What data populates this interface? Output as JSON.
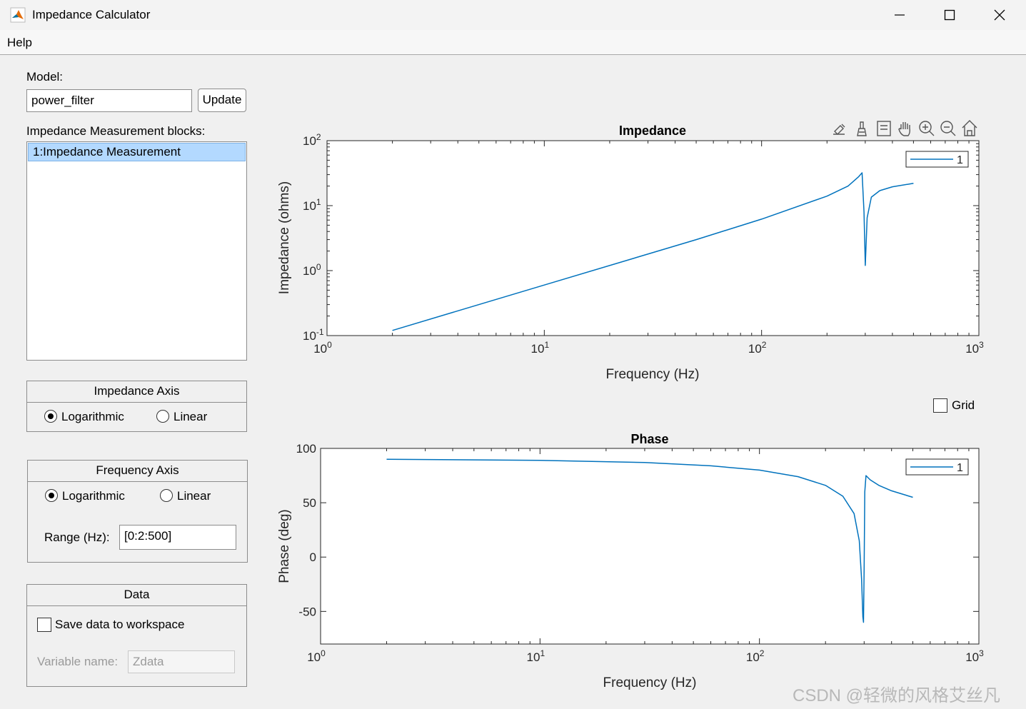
{
  "window": {
    "title": "Impedance Calculator"
  },
  "menu": {
    "help": "Help"
  },
  "model": {
    "label": "Model:",
    "value": "power_filter",
    "update_label": "Update"
  },
  "blocks": {
    "label": "Impedance Measurement blocks:",
    "items": [
      "1:Impedance  Measurement"
    ]
  },
  "impedance_axis": {
    "title": "Impedance Axis",
    "options": [
      "Logarithmic",
      "Linear"
    ],
    "selected": "Logarithmic"
  },
  "frequency_axis": {
    "title": "Frequency Axis",
    "options": [
      "Logarithmic",
      "Linear"
    ],
    "selected": "Logarithmic",
    "range_label": "Range (Hz):",
    "range_value": "[0:2:500]"
  },
  "data_panel": {
    "title": "Data",
    "save_label": "Save data to workspace",
    "save_checked": false,
    "varname_label": "Variable name:",
    "varname_value": "Zdata"
  },
  "grid": {
    "label": "Grid",
    "checked": false
  },
  "toolbar_icons": [
    "brush-export-icon",
    "data-brush-icon",
    "datatip-icon",
    "pan-icon",
    "zoom-in-icon",
    "zoom-out-icon",
    "home-icon"
  ],
  "watermark": "CSDN @轻微的风格艾丝凡",
  "chart_data": [
    {
      "type": "line",
      "title": "Impedance",
      "xlabel": "Frequency (Hz)",
      "ylabel": "Impedance (ohms)",
      "xscale": "log",
      "yscale": "log",
      "xlim": [
        1,
        1000
      ],
      "ylim": [
        0.1,
        100
      ],
      "xticks": [
        {
          "base": "10",
          "exp": "0"
        },
        {
          "base": "10",
          "exp": "1"
        },
        {
          "base": "10",
          "exp": "2"
        },
        {
          "base": "10",
          "exp": "3"
        }
      ],
      "yticks": [
        {
          "base": "10",
          "exp": "-1"
        },
        {
          "base": "10",
          "exp": "0"
        },
        {
          "base": "10",
          "exp": "1"
        },
        {
          "base": "10",
          "exp": "2"
        }
      ],
      "legend": {
        "position": "top-right",
        "entries": [
          "1"
        ]
      },
      "series": [
        {
          "name": "1",
          "x": [
            2,
            10,
            50,
            100,
            200,
            250,
            280,
            290,
            296,
            300,
            306,
            320,
            350,
            400,
            500
          ],
          "y": [
            0.12,
            0.6,
            3.0,
            6.2,
            14,
            20,
            28,
            32,
            8,
            1.2,
            6.5,
            13.5,
            17,
            19.5,
            22
          ]
        }
      ]
    },
    {
      "type": "line",
      "title": "Phase",
      "xlabel": "Frequency (Hz)",
      "ylabel": "Phase (deg)",
      "xscale": "log",
      "xlim": [
        1,
        1000
      ],
      "ylim": [
        -80,
        100
      ],
      "xticks": [
        {
          "base": "10",
          "exp": "0"
        },
        {
          "base": "10",
          "exp": "1"
        },
        {
          "base": "10",
          "exp": "2"
        },
        {
          "base": "10",
          "exp": "3"
        }
      ],
      "yticks": [
        "100",
        "50",
        "0",
        "-50"
      ],
      "legend": {
        "position": "top-right",
        "entries": [
          "1"
        ]
      },
      "series": [
        {
          "name": "1",
          "x": [
            2,
            10,
            30,
            60,
            100,
            150,
            200,
            240,
            270,
            285,
            292,
            296,
            298,
            300,
            302,
            306,
            320,
            350,
            400,
            500
          ],
          "y": [
            90,
            89,
            87,
            84,
            80,
            74,
            66,
            56,
            40,
            15,
            -20,
            -55,
            -60,
            -10,
            60,
            75,
            71,
            66,
            61,
            55
          ]
        }
      ]
    }
  ]
}
